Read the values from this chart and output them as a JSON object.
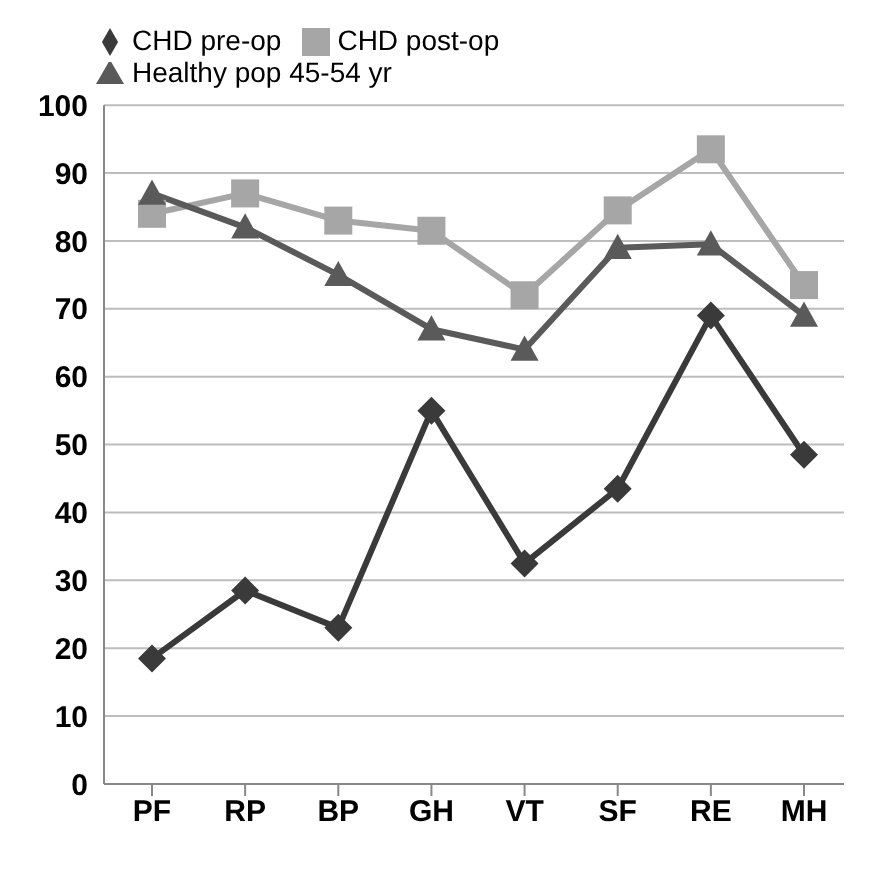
{
  "chart_data": {
    "type": "line",
    "categories": [
      "PF",
      "RP",
      "BP",
      "GH",
      "VT",
      "SF",
      "RE",
      "MH"
    ],
    "series": [
      {
        "name": "CHD pre-op",
        "color": "#3a3a3a",
        "marker": "diamond",
        "values": [
          18.5,
          28.5,
          23,
          55,
          32.5,
          43.5,
          69,
          48.5
        ]
      },
      {
        "name": "CHD post-op",
        "color": "#a6a6a6",
        "marker": "square",
        "values": [
          84,
          87,
          83,
          81.5,
          72,
          84.5,
          93.5,
          73.5
        ]
      },
      {
        "name": "Healthy pop 45-54 yr",
        "color": "#5a5a5a",
        "marker": "triangle",
        "values": [
          87,
          82,
          75,
          67,
          64,
          79,
          79.5,
          69
        ]
      }
    ],
    "ylim": [
      0,
      100
    ],
    "yticks": [
      0,
      10,
      20,
      30,
      40,
      50,
      60,
      70,
      80,
      90,
      100
    ],
    "grid": "y",
    "legend": "top left",
    "line_style": "solid"
  }
}
